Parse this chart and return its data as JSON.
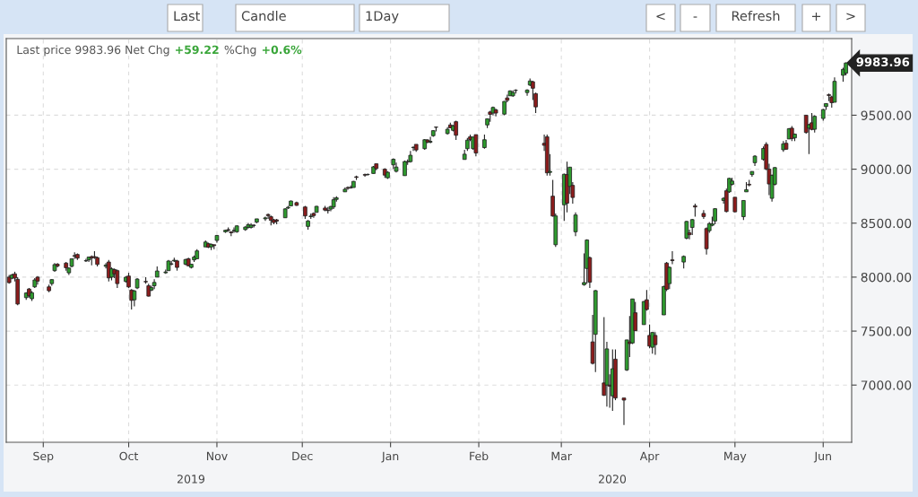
{
  "chart_data": {
    "type": "candlestick",
    "xlim": [
      "2019-08-19",
      "2020-06-11"
    ],
    "xticks": [
      {
        "value": "2019-09-01",
        "label": "Sep"
      },
      {
        "value": "2019-10-01",
        "label": "Oct"
      },
      {
        "value": "2019-11-01",
        "label": "Nov"
      },
      {
        "value": "2019-12-01",
        "label": "Dec"
      },
      {
        "value": "2020-01-01",
        "label": "Jan"
      },
      {
        "value": "2020-02-01",
        "label": "Feb"
      },
      {
        "value": "2020-03-01",
        "label": "Mar"
      },
      {
        "value": "2020-04-01",
        "label": "Apr"
      },
      {
        "value": "2020-05-01",
        "label": "May"
      },
      {
        "value": "2020-06-01",
        "label": "Jun"
      }
    ],
    "ylim": [
      6470,
      10210
    ],
    "yticks": [
      {
        "value": 7000,
        "label": "7000.00"
      },
      {
        "value": 7500,
        "label": "7500.00"
      },
      {
        "value": 8000,
        "label": "8000.00"
      },
      {
        "value": 8500,
        "label": "8500.00"
      },
      {
        "value": 9000,
        "label": "9000.00"
      },
      {
        "value": 9500,
        "label": "9500.00"
      }
    ],
    "grid": true,
    "annotations": [
      "Last price 9983.96 Net Chg",
      "+59.22",
      "%Chg",
      "+0.6%",
      "Last",
      "Candle",
      "1Day",
      "<",
      "-",
      "Refresh",
      "+",
      ">",
      "2019",
      "2020",
      {
        "text": "9983.96",
        "x": "2020-06-09",
        "y": 9983.96
      }
    ],
    "x": [
      "2019-08-20",
      "2019-08-21",
      "2019-08-22",
      "2019-08-23",
      "2019-08-26",
      "2019-08-27",
      "2019-08-28",
      "2019-08-29",
      "2019-08-30",
      "2019-09-03",
      "2019-09-04",
      "2019-09-05",
      "2019-09-06",
      "2019-09-09",
      "2019-09-10",
      "2019-09-11",
      "2019-09-12",
      "2019-09-13",
      "2019-09-16",
      "2019-09-17",
      "2019-09-18",
      "2019-09-19",
      "2019-09-20",
      "2019-09-23",
      "2019-09-24",
      "2019-09-25",
      "2019-09-26",
      "2019-09-27",
      "2019-09-30",
      "2019-10-01",
      "2019-10-02",
      "2019-10-03",
      "2019-10-04",
      "2019-10-07",
      "2019-10-08",
      "2019-10-09",
      "2019-10-10",
      "2019-10-11",
      "2019-10-14",
      "2019-10-15",
      "2019-10-16",
      "2019-10-17",
      "2019-10-18",
      "2019-10-21",
      "2019-10-22",
      "2019-10-23",
      "2019-10-24",
      "2019-10-25",
      "2019-10-28",
      "2019-10-29",
      "2019-10-30",
      "2019-10-31",
      "2019-11-01",
      "2019-11-04",
      "2019-11-05",
      "2019-11-06",
      "2019-11-07",
      "2019-11-08",
      "2019-11-11",
      "2019-11-12",
      "2019-11-13",
      "2019-11-14",
      "2019-11-15",
      "2019-11-18",
      "2019-11-19",
      "2019-11-20",
      "2019-11-21",
      "2019-11-22",
      "2019-11-25",
      "2019-11-26",
      "2019-11-27",
      "2019-11-29",
      "2019-12-02",
      "2019-12-03",
      "2019-12-04",
      "2019-12-05",
      "2019-12-06",
      "2019-12-09",
      "2019-12-10",
      "2019-12-11",
      "2019-12-12",
      "2019-12-13",
      "2019-12-16",
      "2019-12-17",
      "2019-12-18",
      "2019-12-19",
      "2019-12-20",
      "2019-12-23",
      "2019-12-24",
      "2019-12-26",
      "2019-12-27",
      "2019-12-30",
      "2019-12-31",
      "2020-01-02",
      "2020-01-03",
      "2020-01-06",
      "2020-01-07",
      "2020-01-08",
      "2020-01-09",
      "2020-01-10",
      "2020-01-13",
      "2020-01-14",
      "2020-01-15",
      "2020-01-16",
      "2020-01-17",
      "2020-01-21",
      "2020-01-22",
      "2020-01-23",
      "2020-01-24",
      "2020-01-27",
      "2020-01-28",
      "2020-01-29",
      "2020-01-30",
      "2020-01-31",
      "2020-02-03",
      "2020-02-04",
      "2020-02-05",
      "2020-02-06",
      "2020-02-07",
      "2020-02-10",
      "2020-02-11",
      "2020-02-12",
      "2020-02-13",
      "2020-02-14",
      "2020-02-18",
      "2020-02-19",
      "2020-02-20",
      "2020-02-21",
      "2020-02-24",
      "2020-02-25",
      "2020-02-26",
      "2020-02-27",
      "2020-02-28",
      "2020-03-02",
      "2020-03-03",
      "2020-03-04",
      "2020-03-05",
      "2020-03-06",
      "2020-03-09",
      "2020-03-10",
      "2020-03-11",
      "2020-03-12",
      "2020-03-13",
      "2020-03-16",
      "2020-03-17",
      "2020-03-18",
      "2020-03-19",
      "2020-03-20",
      "2020-03-23",
      "2020-03-24",
      "2020-03-25",
      "2020-03-26",
      "2020-03-27",
      "2020-03-30",
      "2020-03-31",
      "2020-04-01",
      "2020-04-02",
      "2020-04-03",
      "2020-04-06",
      "2020-04-07",
      "2020-04-08",
      "2020-04-09",
      "2020-04-13",
      "2020-04-14",
      "2020-04-15",
      "2020-04-16",
      "2020-04-17",
      "2020-04-20",
      "2020-04-21",
      "2020-04-22",
      "2020-04-23",
      "2020-04-24",
      "2020-04-27",
      "2020-04-28",
      "2020-04-29",
      "2020-04-30",
      "2020-05-01",
      "2020-05-04",
      "2020-05-05",
      "2020-05-06",
      "2020-05-07",
      "2020-05-08",
      "2020-05-11",
      "2020-05-12",
      "2020-05-13",
      "2020-05-14",
      "2020-05-15",
      "2020-05-18",
      "2020-05-19",
      "2020-05-20",
      "2020-05-21",
      "2020-05-22",
      "2020-05-26",
      "2020-05-27",
      "2020-05-28",
      "2020-05-29",
      "2020-06-01",
      "2020-06-02",
      "2020-06-03",
      "2020-06-04",
      "2020-06-05",
      "2020-06-08",
      "2020-06-09"
    ],
    "ohlc": [
      [
        8000,
        8020,
        7940,
        7949
      ],
      [
        7990,
        8030,
        7980,
        8020
      ],
      [
        8030,
        8050,
        7960,
        7991
      ],
      [
        7980,
        8000,
        7740,
        7751
      ],
      [
        7810,
        7860,
        7790,
        7853
      ],
      [
        7890,
        7900,
        7810,
        7827
      ],
      [
        7800,
        7870,
        7780,
        7856
      ],
      [
        7910,
        7990,
        7900,
        7974
      ],
      [
        8000,
        8010,
        7930,
        7963
      ],
      [
        7910,
        7930,
        7860,
        7874
      ],
      [
        7940,
        7980,
        7920,
        7977
      ],
      [
        8060,
        8130,
        8050,
        8116
      ],
      [
        8120,
        8130,
        8090,
        8103
      ],
      [
        8130,
        8140,
        8060,
        8087
      ],
      [
        8040,
        8090,
        8020,
        8084
      ],
      [
        8100,
        8170,
        8090,
        8170
      ],
      [
        8200,
        8230,
        8170,
        8194
      ],
      [
        8210,
        8220,
        8160,
        8176
      ],
      [
        8150,
        8170,
        8140,
        8153
      ],
      [
        8160,
        8190,
        8140,
        8186
      ],
      [
        8190,
        8200,
        8110,
        8177
      ],
      [
        8190,
        8240,
        8170,
        8182
      ],
      [
        8180,
        8190,
        8100,
        8118
      ],
      [
        8100,
        8130,
        8080,
        8112
      ],
      [
        8140,
        8160,
        7960,
        7993
      ],
      [
        8000,
        8090,
        7970,
        8077
      ],
      [
        8070,
        8080,
        7990,
        8030
      ],
      [
        8060,
        8070,
        7900,
        7940
      ],
      [
        7960,
        8010,
        7950,
        7999
      ],
      [
        8010,
        8040,
        7900,
        7909
      ],
      [
        7880,
        7890,
        7700,
        7785
      ],
      [
        7790,
        7880,
        7730,
        7872
      ],
      [
        7900,
        7990,
        7890,
        7982
      ],
      [
        7960,
        8000,
        7940,
        7956
      ],
      [
        7920,
        7940,
        7820,
        7824
      ],
      [
        7880,
        7920,
        7870,
        7903
      ],
      [
        7920,
        7980,
        7890,
        7951
      ],
      [
        8000,
        8100,
        8000,
        8057
      ],
      [
        8040,
        8070,
        8030,
        8048
      ],
      [
        8060,
        8160,
        8060,
        8149
      ],
      [
        8120,
        8150,
        8110,
        8124
      ],
      [
        8150,
        8180,
        8140,
        8157
      ],
      [
        8150,
        8160,
        8060,
        8090
      ],
      [
        8120,
        8170,
        8110,
        8163
      ],
      [
        8170,
        8180,
        8100,
        8105
      ],
      [
        8090,
        8120,
        8080,
        8120
      ],
      [
        8160,
        8200,
        8140,
        8186
      ],
      [
        8170,
        8260,
        8170,
        8243
      ],
      [
        8280,
        8340,
        8280,
        8325
      ],
      [
        8310,
        8320,
        8270,
        8277
      ],
      [
        8280,
        8310,
        8250,
        8304
      ],
      [
        8300,
        8300,
        8260,
        8292
      ],
      [
        8340,
        8390,
        8320,
        8386
      ],
      [
        8420,
        8440,
        8410,
        8434
      ],
      [
        8440,
        8460,
        8420,
        8435
      ],
      [
        8420,
        8420,
        8380,
        8411
      ],
      [
        8430,
        8460,
        8410,
        8434
      ],
      [
        8420,
        8480,
        8410,
        8475
      ],
      [
        8440,
        8470,
        8430,
        8464
      ],
      [
        8460,
        8500,
        8450,
        8486
      ],
      [
        8460,
        8500,
        8450,
        8482
      ],
      [
        8480,
        8490,
        8460,
        8479
      ],
      [
        8510,
        8540,
        8500,
        8540
      ],
      [
        8540,
        8560,
        8520,
        8549
      ],
      [
        8580,
        8590,
        8540,
        8570
      ],
      [
        8560,
        8570,
        8480,
        8526
      ],
      [
        8530,
        8540,
        8490,
        8506
      ],
      [
        8530,
        8540,
        8490,
        8519
      ],
      [
        8550,
        8640,
        8550,
        8632
      ],
      [
        8640,
        8660,
        8630,
        8647
      ],
      [
        8660,
        8710,
        8660,
        8705
      ],
      [
        8690,
        8700,
        8660,
        8665
      ],
      [
        8650,
        8660,
        8540,
        8567
      ],
      [
        8470,
        8530,
        8440,
        8520
      ],
      [
        8560,
        8590,
        8540,
        8566
      ],
      [
        8590,
        8600,
        8550,
        8570
      ],
      [
        8600,
        8660,
        8600,
        8656
      ],
      [
        8640,
        8660,
        8610,
        8621
      ],
      [
        8620,
        8650,
        8590,
        8616
      ],
      [
        8630,
        8660,
        8610,
        8654
      ],
      [
        8650,
        8740,
        8630,
        8717
      ],
      [
        8720,
        8750,
        8700,
        8735
      ],
      [
        8790,
        8830,
        8790,
        8814
      ],
      [
        8830,
        8840,
        8810,
        8823
      ],
      [
        8830,
        8850,
        8820,
        8827
      ],
      [
        8830,
        8890,
        8830,
        8887
      ],
      [
        8930,
        8940,
        8900,
        8924
      ],
      [
        8950,
        8960,
        8930,
        8945
      ],
      [
        8950,
        8960,
        8940,
        8952
      ],
      [
        8960,
        9030,
        8960,
        9022
      ],
      [
        9050,
        9050,
        8990,
        9006
      ],
      [
        9000,
        9010,
        8920,
        8945
      ],
      [
        8920,
        8980,
        8910,
        8972
      ],
      [
        9040,
        9100,
        9000,
        9092
      ],
      [
        8980,
        9060,
        8970,
        9020
      ],
      [
        8940,
        9080,
        8940,
        9071
      ],
      [
        9070,
        9090,
        9040,
        9068
      ],
      [
        9070,
        9170,
        9060,
        9129
      ],
      [
        9200,
        9210,
        9170,
        9203
      ],
      [
        9230,
        9230,
        9160,
        9178
      ],
      [
        9190,
        9280,
        9180,
        9273
      ],
      [
        9270,
        9280,
        9240,
        9251
      ],
      [
        9250,
        9300,
        9240,
        9258
      ],
      [
        9310,
        9360,
        9300,
        9357
      ],
      [
        9390,
        9390,
        9350,
        9388
      ],
      [
        9330,
        9390,
        9320,
        9370
      ],
      [
        9410,
        9430,
        9380,
        9383
      ],
      [
        9360,
        9410,
        9350,
        9402
      ],
      [
        9440,
        9450,
        9270,
        9314
      ],
      [
        9090,
        9180,
        9090,
        9139
      ],
      [
        9190,
        9290,
        9170,
        9269
      ],
      [
        9300,
        9320,
        9260,
        9275
      ],
      [
        9190,
        9300,
        9180,
        9298
      ],
      [
        9320,
        9320,
        9120,
        9150
      ],
      [
        9200,
        9320,
        9190,
        9273
      ],
      [
        9410,
        9470,
        9380,
        9467
      ],
      [
        9530,
        9540,
        9440,
        9508
      ],
      [
        9520,
        9580,
        9500,
        9572
      ],
      [
        9550,
        9560,
        9490,
        9520
      ],
      [
        9510,
        9630,
        9500,
        9628
      ],
      [
        9660,
        9690,
        9620,
        9638
      ],
      [
        9680,
        9730,
        9680,
        9725
      ],
      [
        9680,
        9730,
        9670,
        9711
      ],
      [
        9730,
        9740,
        9700,
        9731
      ],
      [
        9710,
        9740,
        9680,
        9733
      ],
      [
        9780,
        9840,
        9770,
        9817
      ],
      [
        9810,
        9820,
        9640,
        9750
      ],
      [
        9700,
        9710,
        9520,
        9577
      ],
      [
        9240,
        9320,
        9170,
        9221
      ],
      [
        9300,
        9320,
        8940,
        8966
      ],
      [
        8970,
        9140,
        8940,
        8980
      ],
      [
        8750,
        8900,
        8560,
        8566
      ],
      [
        8300,
        8590,
        8280,
        8567
      ],
      [
        8670,
        8960,
        8520,
        8953
      ],
      [
        8950,
        9070,
        8600,
        8685
      ],
      [
        8840,
        9020,
        8770,
        9019
      ],
      [
        8850,
        8880,
        8680,
        8738
      ],
      [
        8420,
        8600,
        8380,
        8576
      ],
      [
        7930,
        8220,
        7920,
        7950
      ],
      [
        8080,
        8350,
        7940,
        8344
      ],
      [
        8180,
        8190,
        7900,
        7953
      ],
      [
        7400,
        7650,
        7190,
        7201
      ],
      [
        7470,
        7880,
        7120,
        7875
      ],
      [
        7020,
        7630,
        6900,
        6905
      ],
      [
        7000,
        7400,
        6800,
        7335
      ],
      [
        7000,
        7100,
        6790,
        6990
      ],
      [
        6900,
        7330,
        6760,
        7151
      ],
      [
        7240,
        7330,
        6860,
        6880
      ],
      [
        6880,
        6880,
        6630,
        6861
      ],
      [
        7140,
        7420,
        7130,
        7418
      ],
      [
        7400,
        7640,
        7260,
        7385
      ],
      [
        7390,
        7800,
        7380,
        7798
      ],
      [
        7670,
        7770,
        7500,
        7503
      ],
      [
        7560,
        7780,
        7560,
        7774
      ],
      [
        7790,
        7880,
        7690,
        7700
      ],
      [
        7460,
        7560,
        7340,
        7361
      ],
      [
        7350,
        7490,
        7290,
        7487
      ],
      [
        7460,
        7490,
        7280,
        7374
      ],
      [
        7650,
        7920,
        7650,
        7913
      ],
      [
        8130,
        8140,
        7870,
        7887
      ],
      [
        7940,
        8100,
        7890,
        8091
      ],
      [
        8160,
        8240,
        8120,
        8153
      ],
      [
        8140,
        8200,
        8080,
        8192
      ],
      [
        8360,
        8520,
        8350,
        8516
      ],
      [
        8410,
        8440,
        8350,
        8393
      ],
      [
        8460,
        8540,
        8390,
        8533
      ],
      [
        8660,
        8680,
        8560,
        8650
      ],
      [
        8590,
        8620,
        8540,
        8561
      ],
      [
        8450,
        8460,
        8210,
        8263
      ],
      [
        8430,
        8510,
        8410,
        8495
      ],
      [
        8480,
        8560,
        8470,
        8494
      ],
      [
        8520,
        8640,
        8490,
        8634
      ],
      [
        8710,
        8740,
        8680,
        8730
      ],
      [
        8800,
        8820,
        8600,
        8608
      ],
      [
        8790,
        8920,
        8780,
        8915
      ],
      [
        8860,
        8920,
        8850,
        8890
      ],
      [
        8740,
        8740,
        8600,
        8605
      ],
      [
        8560,
        8710,
        8530,
        8710
      ],
      [
        8790,
        8880,
        8790,
        8810
      ],
      [
        8860,
        8900,
        8840,
        8854
      ],
      [
        8950,
        8980,
        8930,
        8979
      ],
      [
        9060,
        9130,
        9030,
        9121
      ],
      [
        9090,
        9210,
        9080,
        9192
      ],
      [
        9230,
        9250,
        8990,
        9002
      ],
      [
        9000,
        9050,
        8760,
        8863
      ],
      [
        8730,
        8950,
        8700,
        8943
      ],
      [
        8860,
        9020,
        8850,
        9015
      ],
      [
        9180,
        9260,
        9160,
        9235
      ],
      [
        9240,
        9270,
        9180,
        9185
      ],
      [
        9280,
        9380,
        9280,
        9375
      ],
      [
        9380,
        9400,
        9260,
        9284
      ],
      [
        9290,
        9330,
        9260,
        9325
      ],
      [
        9500,
        9500,
        9330,
        9340
      ],
      [
        9380,
        9420,
        9140,
        9412
      ],
      [
        9430,
        9520,
        9360,
        9368
      ],
      [
        9370,
        9500,
        9340,
        9490
      ],
      [
        9470,
        9560,
        9450,
        9552
      ],
      [
        9580,
        9610,
        9550,
        9608
      ],
      [
        9690,
        9700,
        9630,
        9683
      ],
      [
        9670,
        9680,
        9570,
        9616
      ],
      [
        9620,
        9850,
        9620,
        9814
      ],
      [
        9870,
        9940,
        9810,
        9925
      ],
      [
        9890,
        9990,
        9870,
        9983.96
      ]
    ],
    "colors": [
      "#8c1c1c",
      "#2e9b2e",
      "#8c1c1c",
      "#8c1c1c",
      "#2e9b2e",
      "#8c1c1c",
      "#2e9b2e",
      "#2e9b2e",
      "#8c1c1c",
      "#8c1c1c",
      "#2e9b2e",
      "#2e9b2e",
      "#8c1c1c",
      "#8c1c1c",
      "#2e9b2e",
      "#2e9b2e",
      "#8c1c1c",
      "#8c1c1c",
      "#2e9b2e",
      "#2e9b2e",
      "#8c1c1c",
      "#8c1c1c",
      "#8c1c1c",
      "#2e9b2e",
      "#8c1c1c",
      "#2e9b2e",
      "#8c1c1c",
      "#8c1c1c",
      "#2e9b2e",
      "#8c1c1c",
      "#8c1c1c",
      "#2e9b2e",
      "#2e9b2e",
      "#8c1c1c",
      "#8c1c1c",
      "#2e9b2e",
      "#2e9b2e",
      "#2e9b2e",
      "#2e9b2e",
      "#2e9b2e",
      "#2e9b2e",
      "#2e9b2e",
      "#8c1c1c",
      "#2e9b2e",
      "#8c1c1c",
      "#2e9b2e",
      "#2e9b2e",
      "#2e9b2e",
      "#2e9b2e",
      "#8c1c1c",
      "#2e9b2e",
      "#8c1c1c",
      "#2e9b2e",
      "#2e9b2e",
      "#8c1c1c",
      "#8c1c1c",
      "#2e9b2e",
      "#2e9b2e",
      "#2e9b2e",
      "#2e9b2e",
      "#2e9b2e",
      "#8c1c1c",
      "#2e9b2e",
      "#2e9b2e",
      "#8c1c1c",
      "#8c1c1c",
      "#8c1c1c",
      "#8c1c1c",
      "#2e9b2e",
      "#2e9b2e",
      "#2e9b2e",
      "#8c1c1c",
      "#8c1c1c",
      "#2e9b2e",
      "#2e9b2e",
      "#8c1c1c",
      "#2e9b2e",
      "#8c1c1c",
      "#8c1c1c",
      "#2e9b2e",
      "#2e9b2e",
      "#2e9b2e",
      "#2e9b2e",
      "#8c1c1c",
      "#8c1c1c",
      "#2e9b2e",
      "#8c1c1c",
      "#8c1c1c",
      "#2e9b2e",
      "#2e9b2e",
      "#8c1c1c",
      "#8c1c1c",
      "#2e9b2e",
      "#2e9b2e",
      "#2e9b2e",
      "#2e9b2e",
      "#8c1c1c",
      "#2e9b2e",
      "#2e9b2e",
      "#8c1c1c",
      "#2e9b2e",
      "#8c1c1c",
      "#2e9b2e",
      "#2e9b2e",
      "#8c1c1c",
      "#2e9b2e",
      "#8c1c1c",
      "#2e9b2e",
      "#8c1c1c",
      "#2e9b2e",
      "#2e9b2e",
      "#8c1c1c",
      "#2e9b2e",
      "#8c1c1c",
      "#2e9b2e",
      "#2e9b2e",
      "#8c1c1c",
      "#2e9b2e",
      "#8c1c1c",
      "#2e9b2e",
      "#8c1c1c",
      "#2e9b2e",
      "#2e9b2e",
      "#2e9b2e",
      "#2e9b2e",
      "#2e9b2e",
      "#8c1c1c",
      "#8c1c1c",
      "#8c1c1c",
      "#8c1c1c",
      "#2e9b2e",
      "#8c1c1c",
      "#2e9b2e",
      "#2e9b2e",
      "#8c1c1c",
      "#2e9b2e",
      "#8c1c1c",
      "#2e9b2e",
      "#2e9b2e",
      "#2e9b2e",
      "#8c1c1c",
      "#8c1c1c",
      "#2e9b2e",
      "#8c1c1c",
      "#2e9b2e",
      "#8c1c1c",
      "#2e9b2e",
      "#8c1c1c",
      "#8c1c1c",
      "#2e9b2e",
      "#8c1c1c",
      "#2e9b2e",
      "#8c1c1c",
      "#2e9b2e",
      "#8c1c1c",
      "#8c1c1c",
      "#2e9b2e",
      "#8c1c1c",
      "#2e9b2e",
      "#8c1c1c",
      "#2e9b2e",
      "#8c1c1c",
      "#2e9b2e",
      "#2e9b2e",
      "#8c1c1c",
      "#2e9b2e",
      "#8c1c1c",
      "#8c1c1c",
      "#8c1c1c",
      "#2e9b2e",
      "#2e9b2e",
      "#2e9b2e",
      "#2e9b2e",
      "#8c1c1c",
      "#2e9b2e",
      "#2e9b2e",
      "#8c1c1c",
      "#2e9b2e",
      "#2e9b2e",
      "#8c1c1c",
      "#2e9b2e",
      "#2e9b2e",
      "#2e9b2e",
      "#8c1c1c",
      "#8c1c1c",
      "#2e9b2e",
      "#2e9b2e",
      "#2e9b2e",
      "#8c1c1c",
      "#2e9b2e",
      "#8c1c1c",
      "#2e9b2e",
      "#8c1c1c",
      "#2e9b2e",
      "#8c1c1c",
      "#2e9b2e",
      "#2e9b2e",
      "#2e9b2e",
      "#8c1c1c",
      "#8c1c1c",
      "#2e9b2e",
      "#2e9b2e",
      "#2e9b2e"
    ]
  }
}
